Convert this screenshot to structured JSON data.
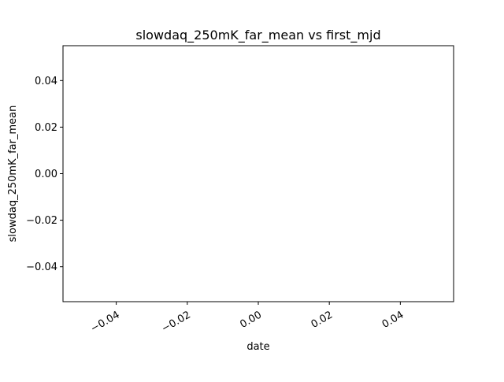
{
  "chart_data": {
    "type": "line",
    "title": "slowdaq_250mK_far_mean vs first_mjd",
    "xlabel": "date",
    "ylabel": "slowdaq_250mK_far_mean",
    "x_ticks": [
      "−0.04",
      "−0.02",
      "0.00",
      "0.02",
      "0.04"
    ],
    "x_tick_values": [
      -0.04,
      -0.02,
      0.0,
      0.02,
      0.04
    ],
    "y_ticks": [
      "−0.04",
      "−0.02",
      "0.00",
      "0.02",
      "0.04"
    ],
    "y_tick_values": [
      -0.04,
      -0.02,
      0.0,
      0.02,
      0.04
    ],
    "xlim": [
      -0.055,
      0.055
    ],
    "ylim": [
      -0.055,
      0.055
    ],
    "x_tick_rotation_deg": 30,
    "grid": false,
    "series": []
  }
}
